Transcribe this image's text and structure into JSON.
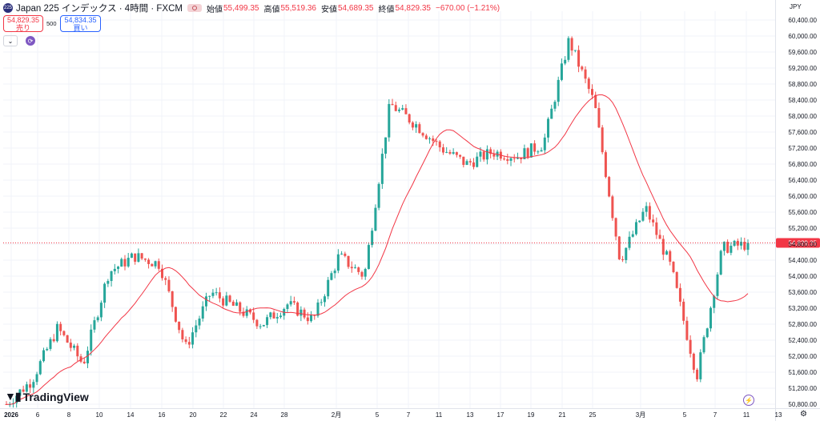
{
  "header": {
    "symbol_badge": "225",
    "title": "Japan 225 インデックス · 4時間 · FXCM",
    "open_label": "始値",
    "open": "55,499.35",
    "high_label": "高値",
    "high": "55,519.36",
    "low_label": "安値",
    "low": "54,689.35",
    "close_label": "終値",
    "close": "54,829.35",
    "change": "−670.00 (−1.21%)"
  },
  "trade": {
    "sell_price": "54,829.35",
    "sell_label": "売り",
    "quantity": "500",
    "buy_price": "54,834.35",
    "buy_label": "買い"
  },
  "currency": "JPY",
  "brand": "TradingView",
  "current_price_label": "54,829.35",
  "colors": {
    "up": "#26a69a",
    "down": "#ef5350",
    "ma": "#f23645",
    "price_line": "#f23645"
  },
  "icons": [
    "symbol-badge-icon",
    "eye-icon",
    "chevron-down-icon",
    "refresh-icon",
    "tradingview-logo-icon",
    "lightning-icon",
    "gear-icon"
  ],
  "chart_data": {
    "type": "candlestick",
    "y_axis": {
      "min": 50800,
      "max": 60400,
      "ticks": [
        "60,400.00",
        "60,000.00",
        "59,600.00",
        "59,200.00",
        "58,800.00",
        "58,400.00",
        "58,000.00",
        "57,600.00",
        "57,200.00",
        "56,800.00",
        "56,400.00",
        "56,000.00",
        "55,600.00",
        "55,200.00",
        "54,800.00",
        "54,400.00",
        "54,000.00",
        "53,600.00",
        "53,200.00",
        "52,800.00",
        "52,400.00",
        "52,000.00",
        "51,600.00",
        "51,200.00",
        "50,800.00"
      ]
    },
    "x_axis": {
      "labels": [
        "2026",
        "6",
        "8",
        "10",
        "14",
        "16",
        "20",
        "22",
        "24",
        "28",
        "2月",
        "5",
        "7",
        "11",
        "13",
        "17",
        "19",
        "21",
        "25",
        "3月",
        "5",
        "7",
        "11",
        "13"
      ]
    },
    "moving_average": {
      "name": "MA",
      "close_keypoints": [
        [
          0,
          50800
        ],
        [
          1,
          51300
        ],
        [
          2,
          51900
        ],
        [
          3,
          52000
        ],
        [
          4,
          53000
        ],
        [
          5,
          54000
        ],
        [
          6,
          54300
        ],
        [
          7,
          53700
        ],
        [
          8,
          52900
        ],
        [
          9,
          53300
        ],
        [
          10,
          53500
        ],
        [
          11,
          53400
        ],
        [
          12,
          53700
        ],
        [
          13,
          54000
        ],
        [
          14,
          54500
        ],
        [
          15,
          56700
        ],
        [
          16,
          57500
        ],
        [
          17,
          57700
        ],
        [
          18,
          56900
        ],
        [
          19,
          57000
        ],
        [
          20,
          57100
        ],
        [
          21,
          57200
        ],
        [
          22,
          58700
        ],
        [
          23,
          58300
        ],
        [
          24,
          56400
        ],
        [
          25,
          55600
        ],
        [
          26,
          54900
        ],
        [
          27,
          54200
        ]
      ]
    },
    "candle_keypoints": [
      [
        0,
        50800
      ],
      [
        1,
        51400
      ],
      [
        2,
        52700
      ],
      [
        3,
        51800
      ],
      [
        4,
        54100
      ],
      [
        5,
        54500
      ],
      [
        6,
        54300
      ],
      [
        7,
        52200
      ],
      [
        8,
        53600
      ],
      [
        9,
        53200
      ],
      [
        10,
        52800
      ],
      [
        11,
        53300
      ],
      [
        12,
        52900
      ],
      [
        13,
        54500
      ],
      [
        14,
        54000
      ],
      [
        15,
        58300
      ],
      [
        16,
        57800
      ],
      [
        17,
        57200
      ],
      [
        18,
        56800
      ],
      [
        19,
        57100
      ],
      [
        20,
        57000
      ],
      [
        21,
        57300
      ],
      [
        22,
        59900
      ],
      [
        23,
        58300
      ],
      [
        24,
        54400
      ],
      [
        25,
        55700
      ],
      [
        26,
        54200
      ],
      [
        27,
        51500
      ],
      [
        28,
        54700
      ],
      [
        29,
        54800
      ]
    ],
    "last_close": 54829.35
  }
}
